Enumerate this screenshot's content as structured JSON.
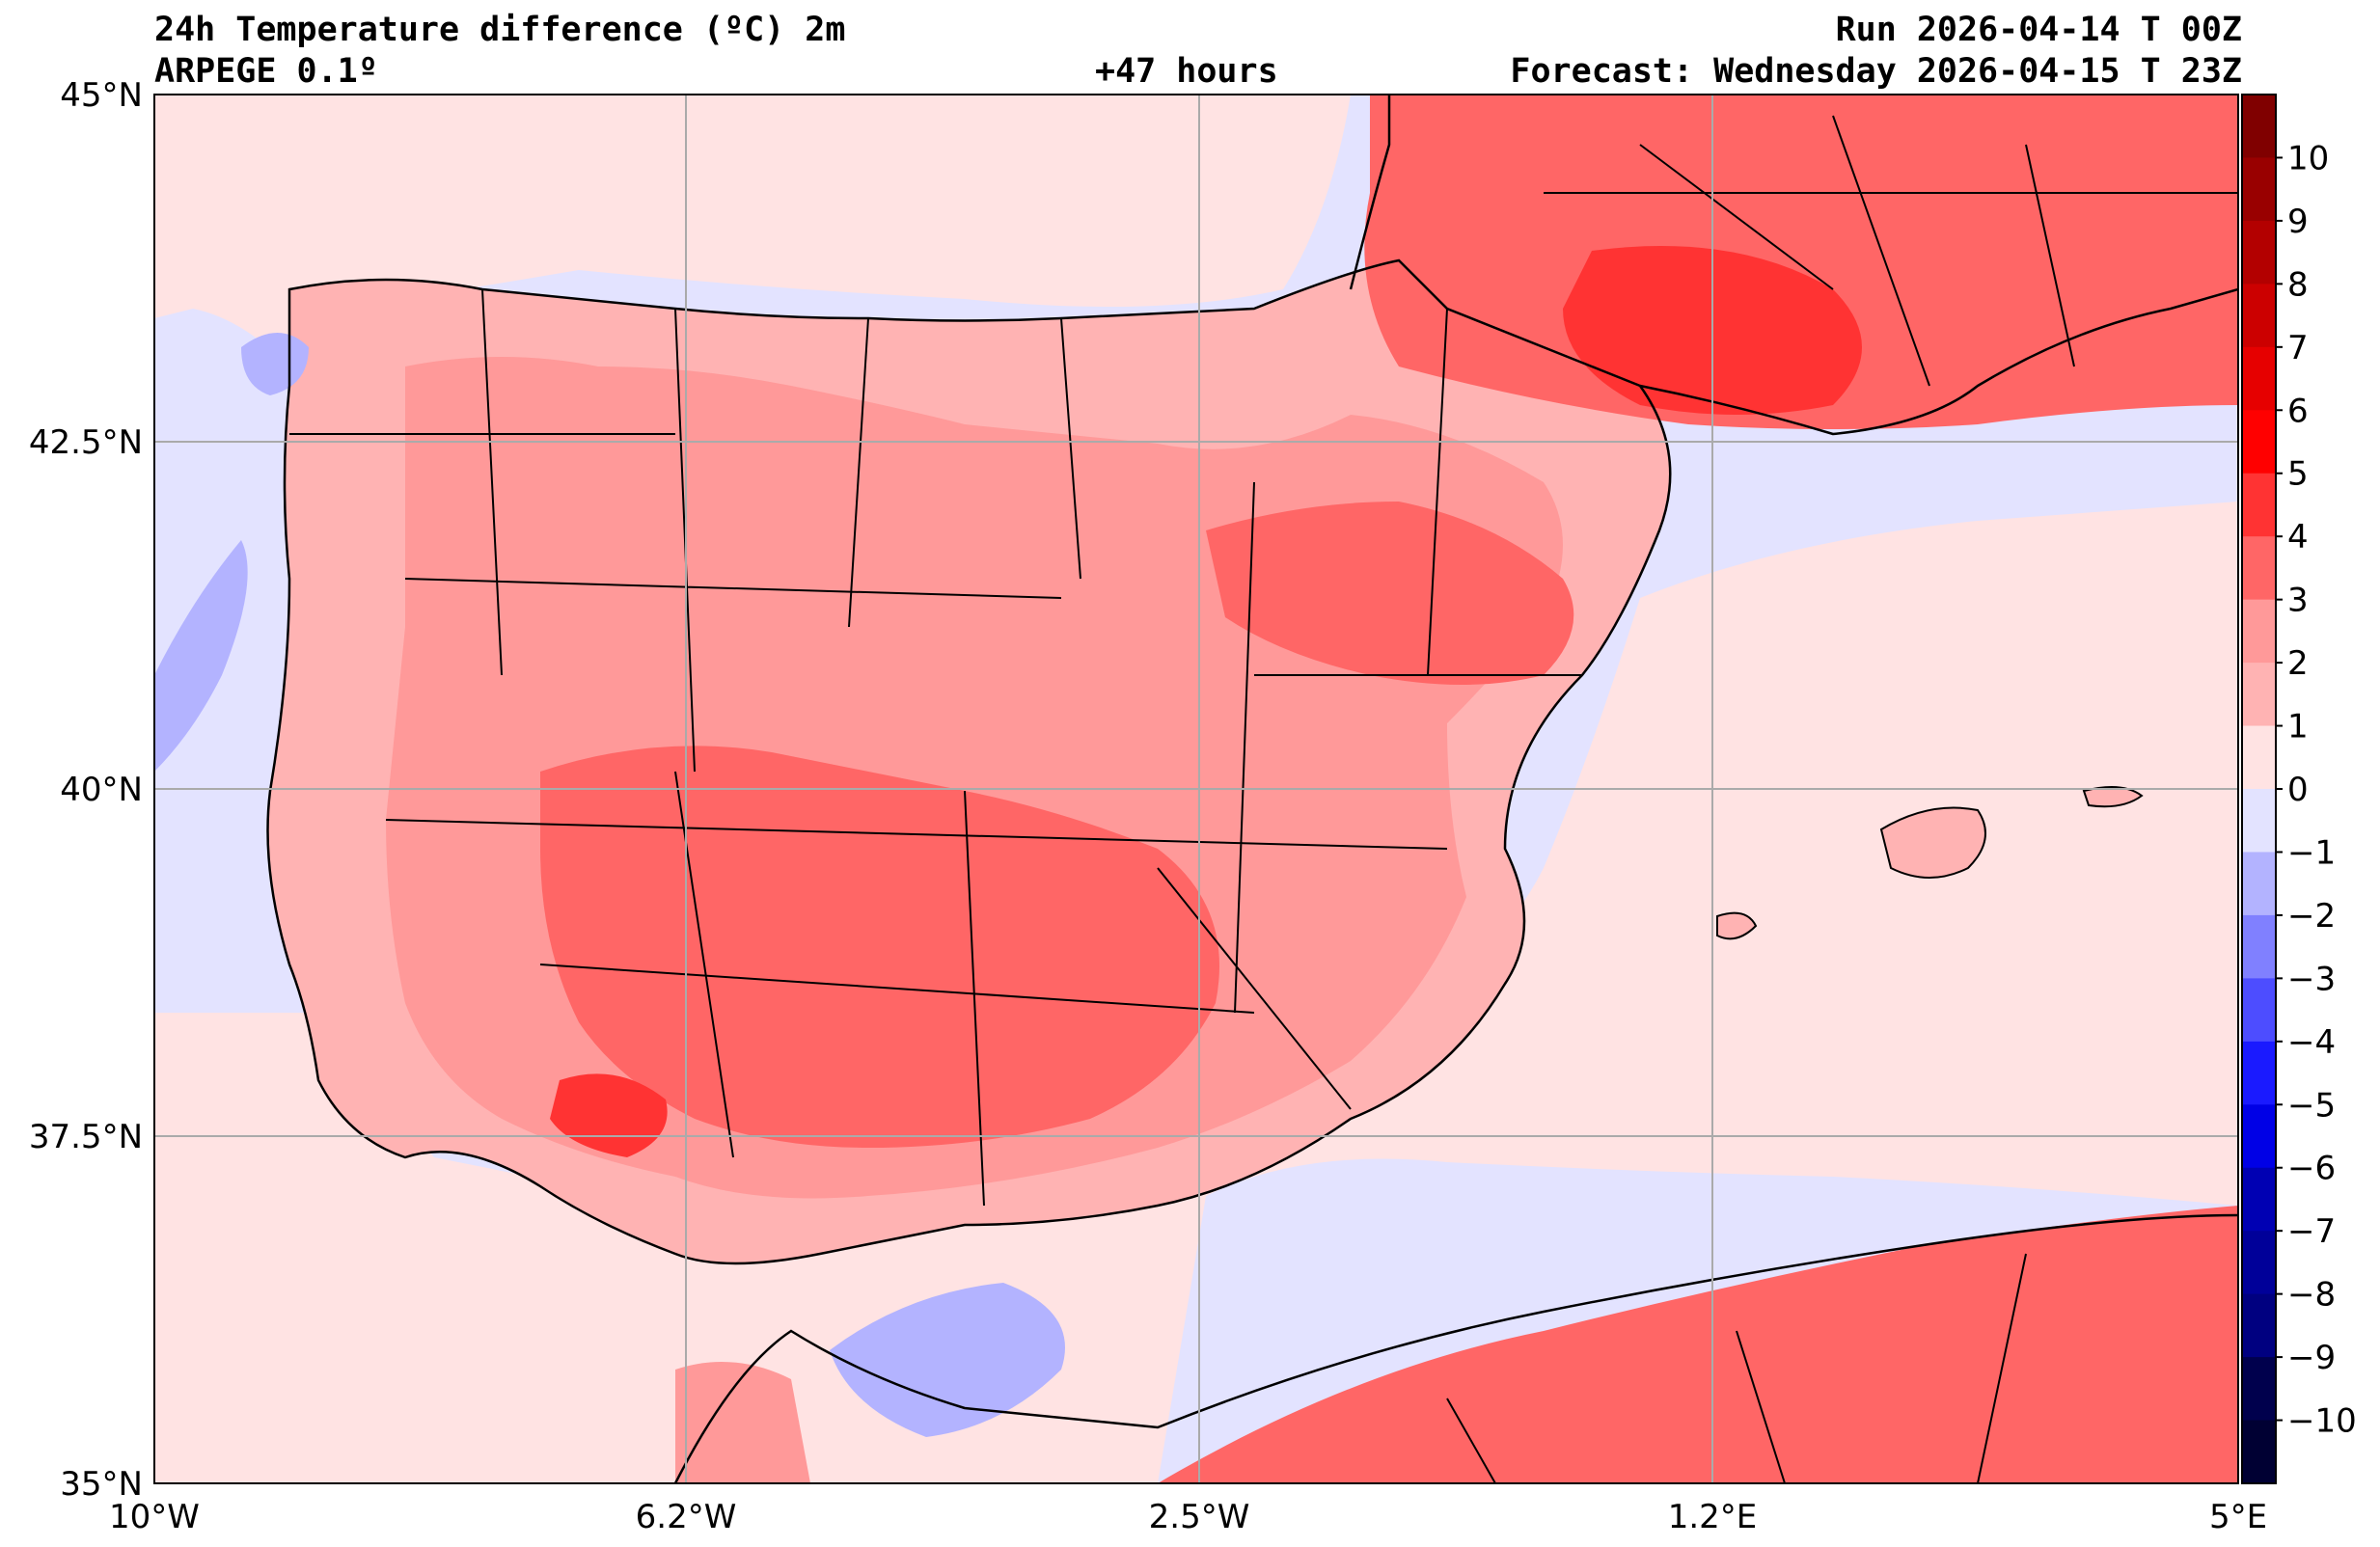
{
  "header": {
    "title": "24h Temperature difference (ºC) 2m",
    "model": "ARPEGE 0.1º",
    "lead_time": "+47 hours",
    "run": "Run 2026-04-14 T 00Z",
    "forecast": "Forecast: Wednesday 2026-04-15 T 23Z"
  },
  "axes": {
    "lat_labels": [
      "45°N",
      "42.5°N",
      "40°N",
      "37.5°N",
      "35°N"
    ],
    "lon_labels": [
      "10°W",
      "6.2°W",
      "2.5°W",
      "1.2°E",
      "5°E"
    ]
  },
  "colorbar": {
    "labels": [
      "10",
      "9",
      "8",
      "7",
      "6",
      "5",
      "4",
      "3",
      "2",
      "1",
      "0",
      "−1",
      "−2",
      "−3",
      "−4",
      "−5",
      "−6",
      "−7",
      "−8",
      "−9",
      "−10"
    ],
    "colors": [
      "#800000",
      "#990000",
      "#b30000",
      "#cc0000",
      "#e60000",
      "#ff0000",
      "#ff3333",
      "#ff6666",
      "#ff9999",
      "#ffb3b3",
      "#ffe3e3",
      "#e3e3ff",
      "#b3b3ff",
      "#8080ff",
      "#4d4dff",
      "#1a1aff",
      "#0000e6",
      "#0000b3",
      "#000099",
      "#000080",
      "#00004d",
      "#000033"
    ]
  },
  "map_colors": {
    "sea_cool": "#e3e3ff",
    "sea_warm": "#ffe3e3",
    "land_warm1": "#ffb3b3",
    "land_warm2": "#ff9999",
    "land_warm3": "#ff6666",
    "land_warm4": "#ff3333",
    "cold1": "#b3b3ff",
    "cold2": "#8080ff"
  }
}
